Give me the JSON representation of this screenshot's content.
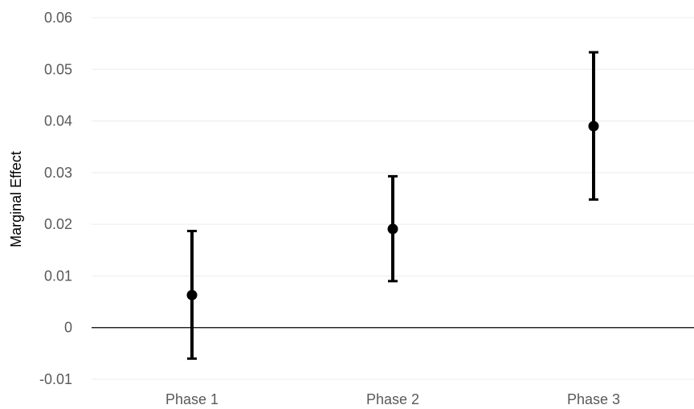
{
  "chart_data": {
    "type": "scatter",
    "title": "",
    "xlabel": "",
    "ylabel": "Marginal Effect",
    "categories": [
      "Phase 1",
      "Phase 2",
      "Phase 3"
    ],
    "series": [
      {
        "values": [
          0.0063,
          0.0191,
          0.039
        ],
        "error_low": [
          -0.006,
          0.009,
          0.0248
        ],
        "error_high": [
          0.0187,
          0.0293,
          0.0533
        ]
      }
    ],
    "ylim": [
      -0.01,
      0.06
    ],
    "yticks": [
      "-0.01",
      "0",
      "0.01",
      "0.02",
      "0.03",
      "0.04",
      "0.05",
      "0.06"
    ],
    "grid": true,
    "legend": "none",
    "colors": {
      "marker": "#000000",
      "gridline": "#ececec",
      "zero_line": "#000000",
      "tick_text": "#595959"
    }
  }
}
